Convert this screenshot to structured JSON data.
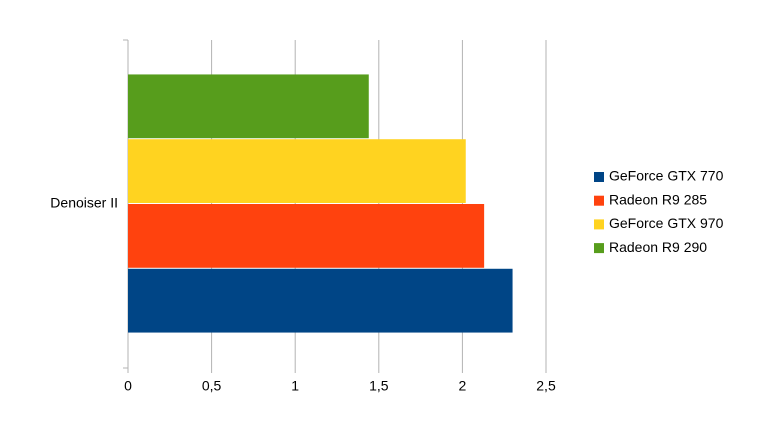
{
  "chart_data": {
    "type": "hbar",
    "categories": [
      "Denoiser II"
    ],
    "series": [
      {
        "name": "GeForce GTX 770",
        "color": "#004586",
        "values": [
          2.3
        ]
      },
      {
        "name": "Radeon R9 285",
        "color": "#ff420e",
        "values": [
          2.13
        ]
      },
      {
        "name": "GeForce GTX 970",
        "color": "#ffd320",
        "values": [
          2.02
        ]
      },
      {
        "name": "Radeon R9 290",
        "color": "#579d1c",
        "values": [
          1.44
        ]
      }
    ],
    "xlim": [
      0,
      2.5
    ],
    "xticks": [
      0,
      {
        "value": 0.5,
        "label": "0,5"
      },
      1,
      {
        "value": 1.5,
        "label": "1,5"
      },
      2,
      {
        "value": 2.5,
        "label": "2,5"
      }
    ],
    "grid": true,
    "legend": "right"
  }
}
